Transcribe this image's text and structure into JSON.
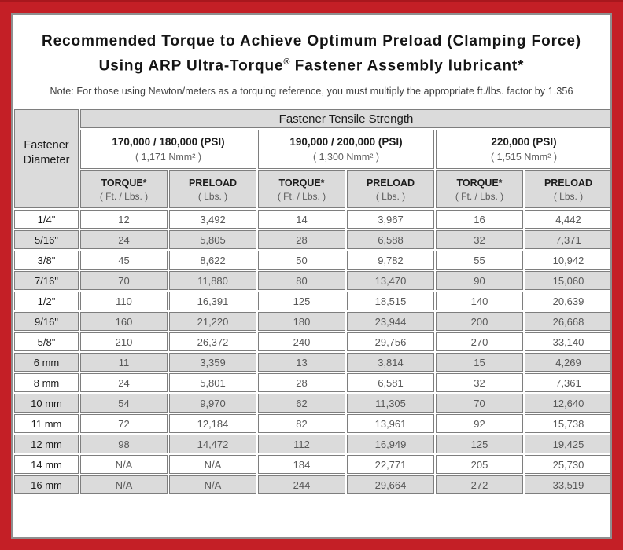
{
  "title": {
    "line1": "Recommended Torque to Achieve Optimum Preload (Clamping Force)",
    "line2_pre": "Using ARP Ultra-Torque",
    "line2_sup": "®",
    "line2_post": " Fastener Assembly lubricant*"
  },
  "note": "Note: For those using Newton/meters as a torquing reference, you must multiply the appropriate ft./lbs. factor by 1.356",
  "colors": {
    "frame_red": "#c41f26",
    "cell_gray": "#dbdbdb",
    "cell_border": "#7e7e7e",
    "value_text": "#585858"
  },
  "table": {
    "diameter_header_line1": "Fastener",
    "diameter_header_line2": "Diameter",
    "tensile_header": "Fastener Tensile Strength",
    "groups": [
      {
        "psi": "170,000 / 180,000 (PSI)",
        "nmm": "( 1,171 Nmm² )"
      },
      {
        "psi": "190,000 / 200,000 (PSI)",
        "nmm": "( 1,300 Nmm² )"
      },
      {
        "psi": "220,000 (PSI)",
        "nmm": "( 1,515 Nmm² )"
      }
    ],
    "col_headers": {
      "torque_label": "TORQUE*",
      "torque_sub": "( Ft. / Lbs. )",
      "preload_label": "PRELOAD",
      "preload_sub": "( Lbs. )"
    },
    "rows": [
      {
        "diameter": "1/4\"",
        "values": [
          "12",
          "3,492",
          "14",
          "3,967",
          "16",
          "4,442"
        ]
      },
      {
        "diameter": "5/16\"",
        "values": [
          "24",
          "5,805",
          "28",
          "6,588",
          "32",
          "7,371"
        ]
      },
      {
        "diameter": "3/8\"",
        "values": [
          "45",
          "8,622",
          "50",
          "9,782",
          "55",
          "10,942"
        ]
      },
      {
        "diameter": "7/16\"",
        "values": [
          "70",
          "11,880",
          "80",
          "13,470",
          "90",
          "15,060"
        ]
      },
      {
        "diameter": "1/2\"",
        "values": [
          "110",
          "16,391",
          "125",
          "18,515",
          "140",
          "20,639"
        ]
      },
      {
        "diameter": "9/16\"",
        "values": [
          "160",
          "21,220",
          "180",
          "23,944",
          "200",
          "26,668"
        ]
      },
      {
        "diameter": "5/8\"",
        "values": [
          "210",
          "26,372",
          "240",
          "29,756",
          "270",
          "33,140"
        ]
      },
      {
        "diameter": "6 mm",
        "values": [
          "11",
          "3,359",
          "13",
          "3,814",
          "15",
          "4,269"
        ]
      },
      {
        "diameter": "8 mm",
        "values": [
          "24",
          "5,801",
          "28",
          "6,581",
          "32",
          "7,361"
        ]
      },
      {
        "diameter": "10 mm",
        "values": [
          "54",
          "9,970",
          "62",
          "11,305",
          "70",
          "12,640"
        ]
      },
      {
        "diameter": "11 mm",
        "values": [
          "72",
          "12,184",
          "82",
          "13,961",
          "92",
          "15,738"
        ]
      },
      {
        "diameter": "12 mm",
        "values": [
          "98",
          "14,472",
          "112",
          "16,949",
          "125",
          "19,425"
        ]
      },
      {
        "diameter": "14 mm",
        "values": [
          "N/A",
          "N/A",
          "184",
          "22,771",
          "205",
          "25,730"
        ]
      },
      {
        "diameter": "16 mm",
        "values": [
          "N/A",
          "N/A",
          "244",
          "29,664",
          "272",
          "33,519"
        ]
      }
    ]
  }
}
